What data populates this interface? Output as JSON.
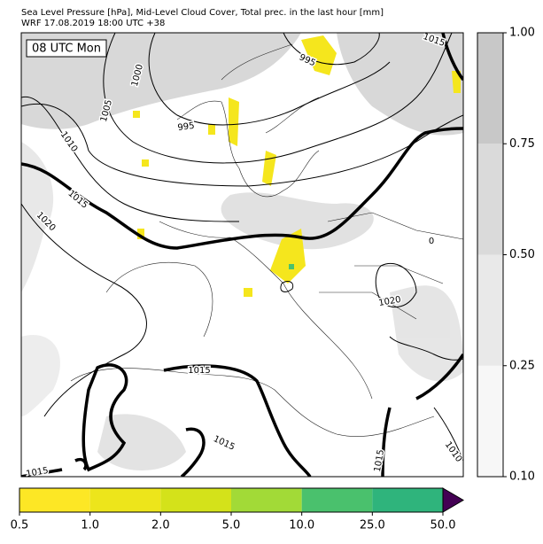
{
  "header": {
    "title_lines": [
      "Sea Level Pressure [hPa], Mid-Level Cloud Cover, Total prec. in the last hour [mm]",
      "WRF 17.08.2019 18:00 UTC +38"
    ]
  },
  "map": {
    "time_label": "08 UTC Mon",
    "isobar_labels": [
      "1015",
      "995",
      "1000",
      "1005",
      "995",
      "1010",
      "1015",
      "1020",
      "0",
      "1020",
      "1015",
      "1015",
      "1015",
      "1015",
      "1010"
    ]
  },
  "cloud_colorbar": {
    "ticks": [
      "0.10",
      "0.25",
      "0.50",
      "0.75",
      "1.00"
    ],
    "colors": [
      "#f7f7f7",
      "#e9e9e9",
      "#dadada",
      "#c8c8c8"
    ]
  },
  "precip_colorbar": {
    "ticks": [
      "0.5",
      "1.0",
      "2.0",
      "5.0",
      "10.0",
      "25.0",
      "50.0"
    ],
    "colors": [
      "#fde725",
      "#ede51b",
      "#d4e21a",
      "#a2da37",
      "#4ac16d",
      "#2fb47c",
      "#3b528b"
    ],
    "extend_color": "#440154"
  }
}
